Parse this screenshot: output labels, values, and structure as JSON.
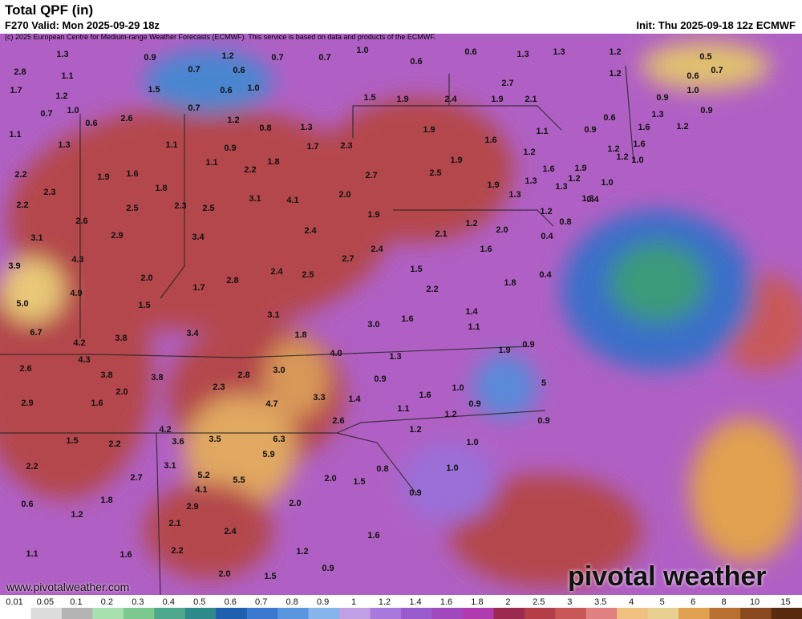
{
  "header": {
    "title": "Total QPF (in)",
    "valid": "F270 Valid: Mon 2025-09-29 18z",
    "init": "Init: Thu 2025-09-18 12z ECMWF",
    "credit": "(c) 2025 European Centre for Medium-range Weather Forecasts (ECMWF). This service is based on data and products of the ECMWF."
  },
  "map": {
    "labels": [
      "1.3",
      "0.9",
      "1.2",
      "0.7",
      "0.7",
      "1.0",
      "0.6",
      "0.6",
      "1.3",
      "1.3",
      "1.2",
      "0.5",
      "2.8",
      "1.1",
      "0.7",
      "0.6",
      "1.2",
      "0.6",
      "0.7",
      "1.7",
      "1.2",
      "1.5",
      "0.6",
      "1.0",
      "2.7",
      "1.0",
      "1.5",
      "1.9",
      "2.4",
      "1.9",
      "2.1",
      "0.9",
      "0.7",
      "1.0",
      "2.6",
      "0.7",
      "1.3",
      "0.9",
      "0.6",
      "1.2",
      "0.8",
      "1.3",
      "1.9",
      "1.1",
      "0.9",
      "0.6",
      "1.6",
      "1.2",
      "1.1",
      "1.3",
      "1.1",
      "0.9",
      "1.7",
      "2.3",
      "1.6",
      "1.2",
      "1.6",
      "1.2",
      "1.1",
      "1.8",
      "2.2",
      "1.9",
      "1.0",
      "1.2",
      "2.2",
      "1.9",
      "1.6",
      "2.7",
      "2.5",
      "1.6",
      "1.9",
      "1.2",
      "1.0",
      "2.3",
      "1.8",
      "1.9",
      "1.3",
      "1.3",
      "2.0",
      "1.3",
      "1.3",
      "2.2",
      "2.5",
      "2.3",
      "2.5",
      "3.1",
      "4.1",
      "1.9",
      "0.4",
      "1.2",
      "1.2",
      "0.8",
      "2.6",
      "2.9",
      "3.4",
      "2.4",
      "2.1",
      "2.0",
      "0.4",
      "3.1",
      "2.4",
      "1.6",
      "2.7",
      "4.3",
      "3.9",
      "2.5",
      "1.5",
      "2.4",
      "0.4",
      "2.0",
      "2.8",
      "1.7",
      "1.8",
      "2.2",
      "4.9",
      "5.0",
      "1.5",
      "3.1",
      "1.4",
      "1.6",
      "3.0",
      "1.1",
      "1.8",
      "3.4",
      "3.8",
      "6.7",
      "4.2",
      "0.9",
      "1.9",
      "4.0",
      "1.3",
      "4.3",
      "2.6",
      "3.0",
      "2.8",
      "3.8",
      "3.8",
      "0.9",
      "2.3",
      "2.0",
      "1.0",
      "1.6",
      "5",
      "2.9",
      "1.6",
      "4.7",
      "3.3",
      "1.4",
      "1.1",
      "0.9",
      "1.2",
      "2.6",
      "0.9",
      "1.2",
      "4.2",
      "1.5",
      "2.2",
      "3.6",
      "3.5",
      "6.3",
      "1.0",
      "5.9",
      "2.2",
      "3.1",
      "0.8",
      "1.0",
      "5.2",
      "2.7",
      "2.0",
      "1.5",
      "5.5",
      "4.1",
      "0.9",
      "0.6",
      "1.8",
      "2.9",
      "2.0",
      "1.2",
      "2.1",
      "2.4",
      "1.6",
      "1.1",
      "1.6",
      "2.2",
      "1.2",
      "0.9",
      "2.0",
      "1.5"
    ]
  },
  "colorbar": {
    "ticks": [
      0.01,
      0.05,
      0.1,
      0.2,
      0.3,
      0.4,
      0.5,
      0.6,
      0.7,
      0.8,
      0.9,
      1,
      1.2,
      1.4,
      1.6,
      1.8,
      2,
      2.5,
      3,
      3.5,
      4,
      5,
      6,
      8,
      10,
      15
    ],
    "colors": [
      "#ffffff",
      "#dcdcdc",
      "#b4b4b4",
      "#a8e0b0",
      "#7cc890",
      "#4ea88c",
      "#2e8a8a",
      "#1f5fb0",
      "#3a78d0",
      "#5a96e0",
      "#88b4ec",
      "#c0a0e4",
      "#a878dc",
      "#9a5ccc",
      "#a048bc",
      "#b03cb0",
      "#9c2a50",
      "#b43e48",
      "#c85858",
      "#e08080",
      "#f0c080",
      "#e8d090",
      "#e0a050",
      "#b87030",
      "#8a4a20",
      "#5a2a10"
    ]
  },
  "footer": {
    "url": "www.pivotalweather.com",
    "brand": "pivotal weather"
  }
}
